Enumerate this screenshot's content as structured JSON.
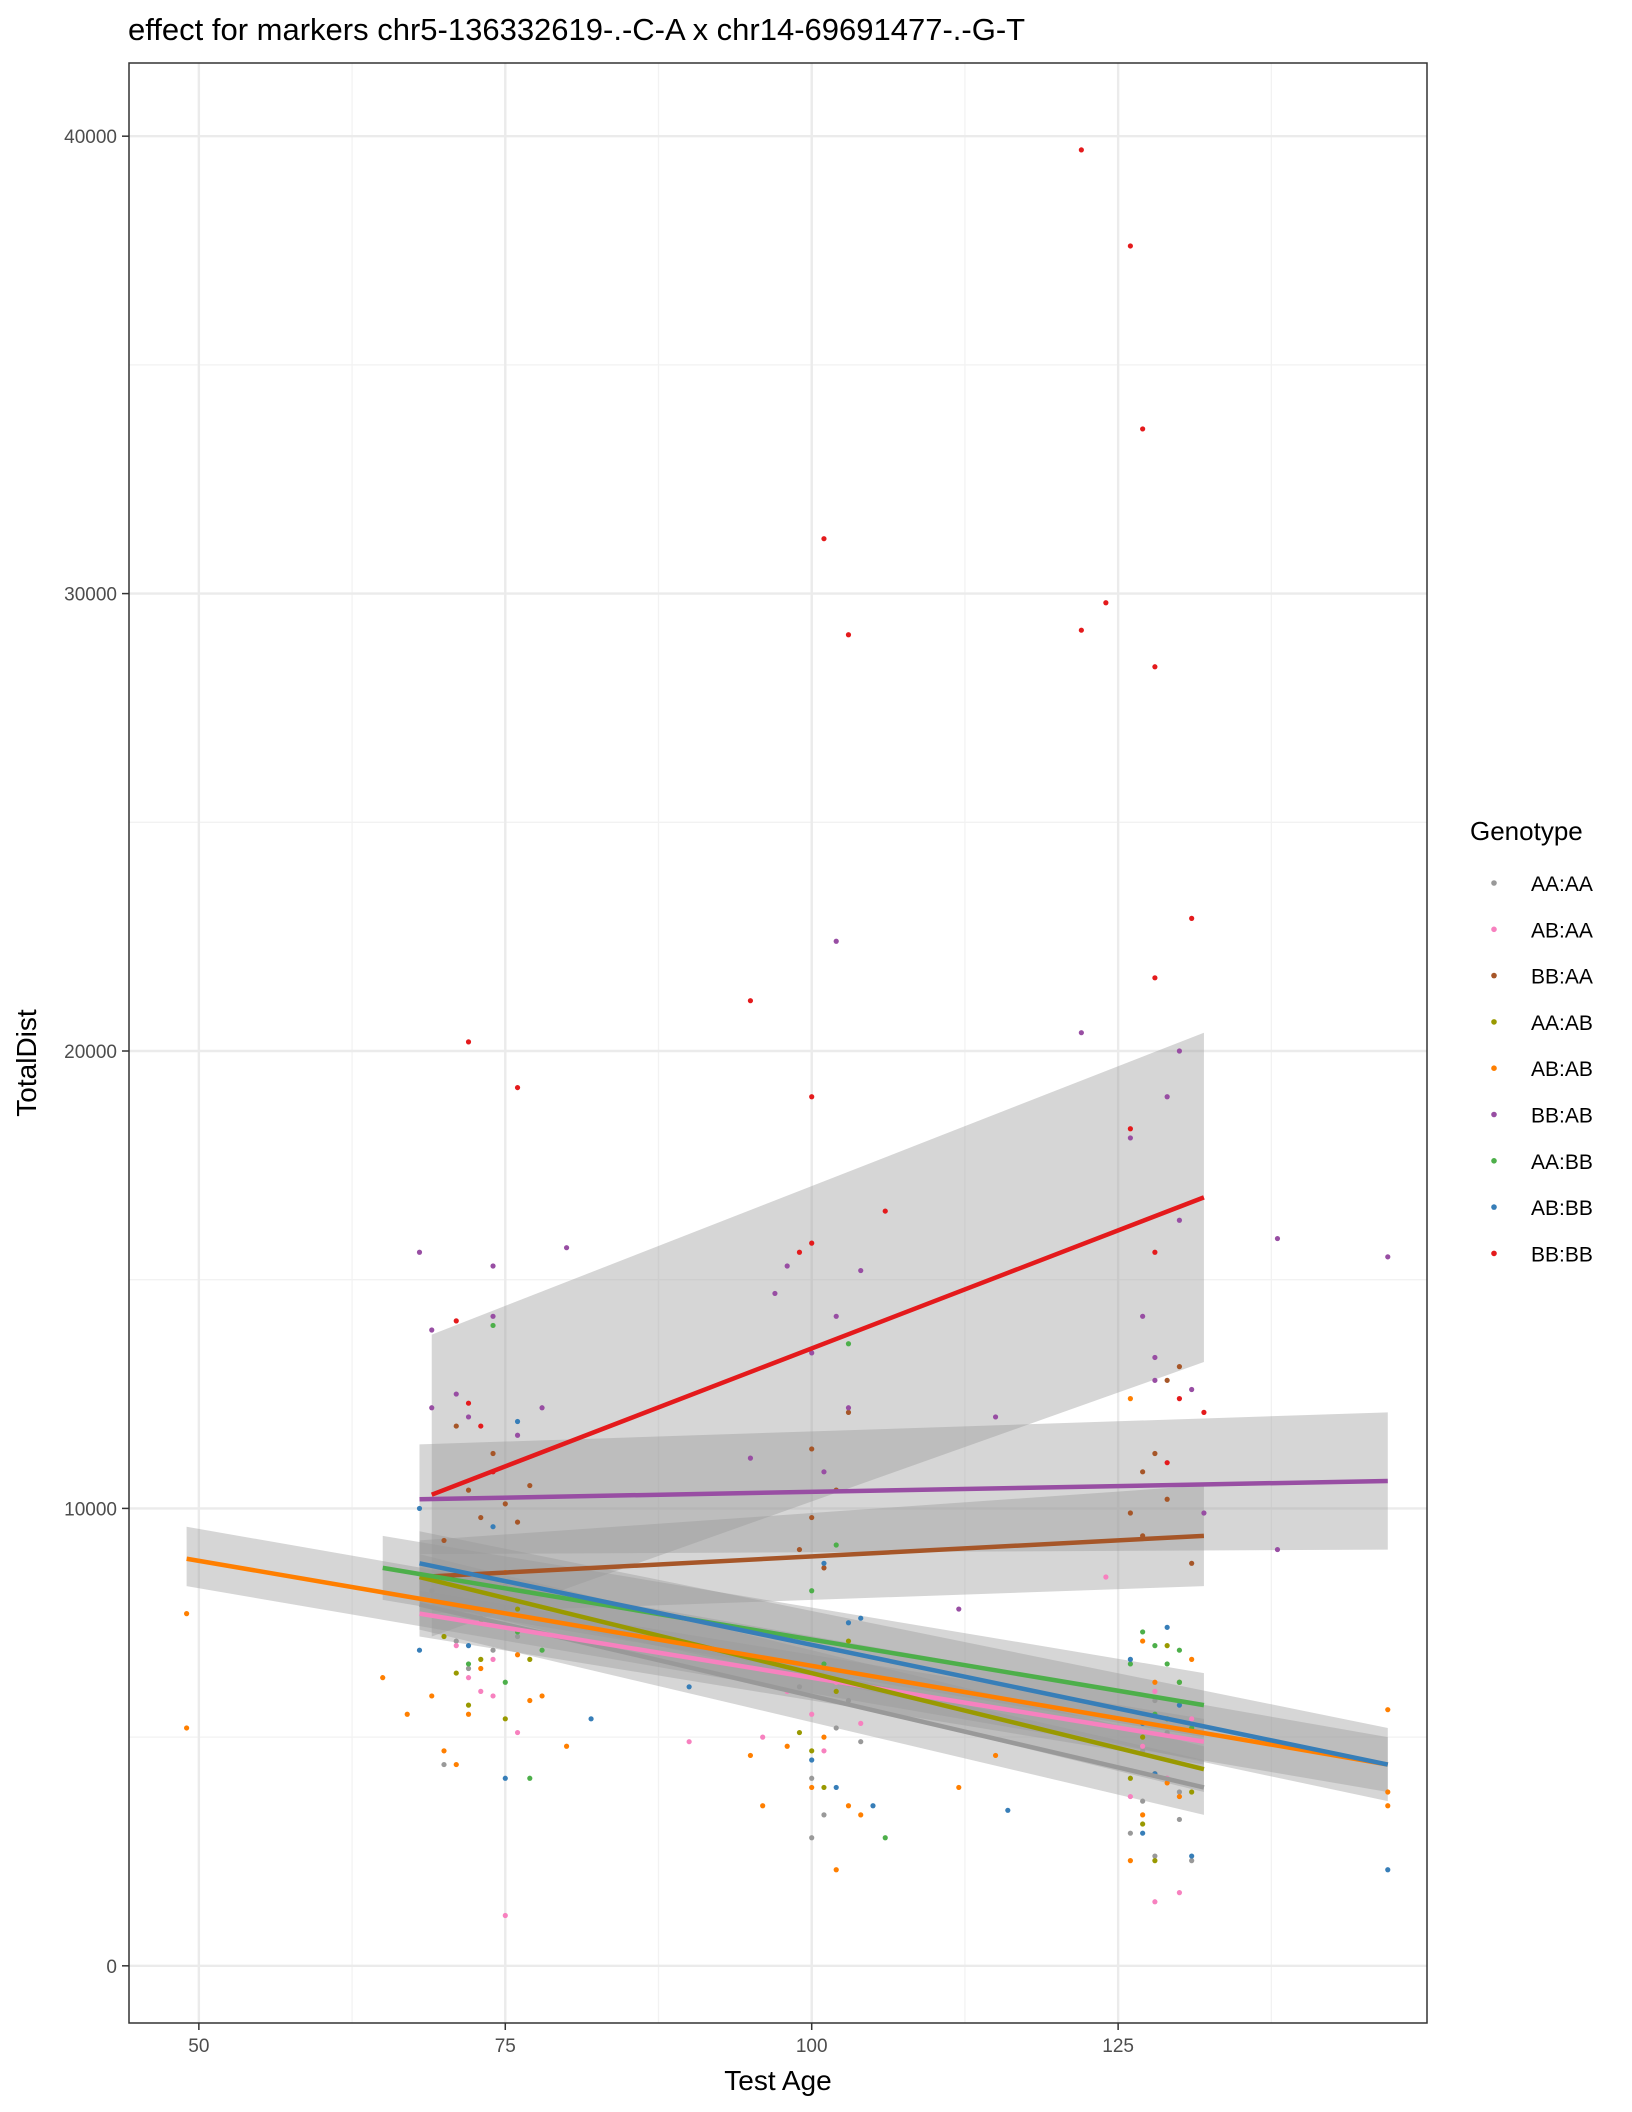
{
  "chart_data": {
    "type": "scatter",
    "title": "effect for markers chr5-136332619-.-C-A x chr14-69691477-.-G-T",
    "xlabel": "Test Age",
    "ylabel": "TotalDist",
    "xlim": [
      44.3,
      150.2
    ],
    "ylim": [
      -1250,
      41600
    ],
    "x_ticks": [
      {
        "value": 50,
        "label": "50"
      },
      {
        "value": 75,
        "label": "75"
      },
      {
        "value": 100,
        "label": "100"
      },
      {
        "value": 125,
        "label": "125"
      }
    ],
    "y_ticks": [
      {
        "value": 0,
        "label": "0"
      },
      {
        "value": 10000,
        "label": "10000"
      },
      {
        "value": 20000,
        "label": "20000"
      },
      {
        "value": 30000,
        "label": "30000"
      },
      {
        "value": 40000,
        "label": "40000"
      }
    ],
    "grid": true,
    "legend_title": "Genotype",
    "legend_position": "right",
    "series": [
      {
        "name": "AA:AA",
        "color": "#999999",
        "points": [
          [
            69,
            8200
          ],
          [
            70,
            4400
          ],
          [
            71,
            7100
          ],
          [
            72,
            6500
          ],
          [
            73,
            7600
          ],
          [
            74,
            6900
          ],
          [
            75,
            8300
          ],
          [
            76,
            7200
          ],
          [
            100,
            2800
          ],
          [
            101,
            3300
          ],
          [
            102,
            5200
          ],
          [
            99,
            6100
          ],
          [
            103,
            5800
          ],
          [
            100,
            4100
          ],
          [
            101,
            6500
          ],
          [
            104,
            4900
          ],
          [
            126,
            2900
          ],
          [
            127,
            3600
          ],
          [
            128,
            2400
          ],
          [
            129,
            4100
          ],
          [
            130,
            3200
          ],
          [
            131,
            2300
          ],
          [
            128,
            5800
          ],
          [
            127,
            4700
          ],
          [
            130,
            3800
          ],
          [
            129,
            5100
          ]
        ],
        "fit": {
          "x": [
            68,
            132
          ],
          "y": [
            7900,
            3900
          ]
        },
        "band": {
          "lower": [
            7350,
            3300
          ],
          "upper": [
            8450,
            4500
          ]
        }
      },
      {
        "name": "AB:AA",
        "color": "#F781BF",
        "points": [
          [
            72,
            6300
          ],
          [
            73,
            6000
          ],
          [
            74,
            5900
          ],
          [
            75,
            1100
          ],
          [
            76,
            5100
          ],
          [
            71,
            7000
          ],
          [
            74,
            6700
          ],
          [
            90,
            4900
          ],
          [
            96,
            5000
          ],
          [
            98,
            6000
          ],
          [
            100,
            5500
          ],
          [
            101,
            4700
          ],
          [
            102,
            6200
          ],
          [
            104,
            5300
          ],
          [
            126,
            3700
          ],
          [
            127,
            4800
          ],
          [
            128,
            1400
          ],
          [
            129,
            4100
          ],
          [
            130,
            1600
          ],
          [
            131,
            5400
          ],
          [
            124,
            8500
          ],
          [
            128,
            6000
          ]
        ],
        "fit": {
          "x": [
            68,
            132
          ],
          "y": [
            7700,
            4900
          ]
        },
        "band": {
          "lower": [
            7200,
            4400
          ],
          "upper": [
            8200,
            5400
          ]
        }
      },
      {
        "name": "BB:AA",
        "color": "#A65628",
        "points": [
          [
            70,
            9300
          ],
          [
            71,
            11800
          ],
          [
            72,
            10400
          ],
          [
            73,
            9800
          ],
          [
            74,
            11200
          ],
          [
            75,
            10100
          ],
          [
            76,
            9700
          ],
          [
            77,
            10500
          ],
          [
            100,
            9800
          ],
          [
            101,
            8700
          ],
          [
            102,
            10400
          ],
          [
            99,
            9100
          ],
          [
            103,
            12100
          ],
          [
            100,
            11300
          ],
          [
            126,
            9900
          ],
          [
            127,
            10800
          ],
          [
            128,
            11200
          ],
          [
            129,
            12800
          ],
          [
            130,
            13100
          ],
          [
            131,
            8800
          ],
          [
            127,
            9400
          ],
          [
            129,
            10200
          ]
        ],
        "fit": {
          "x": [
            68,
            132
          ],
          "y": [
            8500,
            9400
          ]
        },
        "band": {
          "lower": [
            7700,
            8300
          ],
          "upper": [
            9300,
            10500
          ]
        }
      },
      {
        "name": "AA:AB",
        "color": "#999900",
        "points": [
          [
            70,
            7200
          ],
          [
            71,
            6400
          ],
          [
            72,
            5700
          ],
          [
            73,
            6700
          ],
          [
            75,
            5400
          ],
          [
            76,
            7800
          ],
          [
            77,
            6700
          ],
          [
            100,
            4700
          ],
          [
            101,
            3900
          ],
          [
            102,
            6000
          ],
          [
            103,
            7100
          ],
          [
            99,
            5100
          ],
          [
            126,
            4100
          ],
          [
            127,
            3100
          ],
          [
            128,
            2300
          ],
          [
            129,
            5400
          ],
          [
            130,
            6200
          ],
          [
            131,
            3800
          ],
          [
            129,
            7000
          ],
          [
            127,
            5000
          ]
        ],
        "fit": {
          "x": [
            68,
            132
          ],
          "y": [
            8500,
            4300
          ]
        },
        "band": {
          "lower": [
            8000,
            3800
          ],
          "upper": [
            9000,
            4800
          ]
        }
      },
      {
        "name": "AB:AB",
        "color": "#FF7F00",
        "points": [
          [
            49,
            7700
          ],
          [
            49,
            5200
          ],
          [
            65,
            6300
          ],
          [
            67,
            5500
          ],
          [
            69,
            5900
          ],
          [
            70,
            4700
          ],
          [
            71,
            4400
          ],
          [
            72,
            5500
          ],
          [
            73,
            6500
          ],
          [
            75,
            8600
          ],
          [
            76,
            6800
          ],
          [
            77,
            5800
          ],
          [
            78,
            5900
          ],
          [
            80,
            4800
          ],
          [
            95,
            4600
          ],
          [
            96,
            3500
          ],
          [
            98,
            4800
          ],
          [
            100,
            3900
          ],
          [
            101,
            5000
          ],
          [
            102,
            2100
          ],
          [
            103,
            3500
          ],
          [
            104,
            3300
          ],
          [
            112,
            3900
          ],
          [
            115,
            4600
          ],
          [
            126,
            2300
          ],
          [
            127,
            3300
          ],
          [
            128,
            4200
          ],
          [
            129,
            4000
          ],
          [
            130,
            3700
          ],
          [
            131,
            6700
          ],
          [
            126,
            12400
          ],
          [
            127,
            7100
          ],
          [
            128,
            6200
          ],
          [
            147,
            3800
          ],
          [
            147,
            5600
          ],
          [
            147,
            3500
          ]
        ],
        "fit": {
          "x": [
            49,
            147
          ],
          "y": [
            8900,
            4400
          ]
        },
        "band": {
          "lower": [
            8300,
            3800
          ],
          "upper": [
            9600,
            5000
          ]
        }
      },
      {
        "name": "BB:AB",
        "color": "#984EA3",
        "points": [
          [
            68,
            15600
          ],
          [
            69,
            13900
          ],
          [
            69,
            12200
          ],
          [
            71,
            12500
          ],
          [
            72,
            12000
          ],
          [
            74,
            15300
          ],
          [
            74,
            14200
          ],
          [
            76,
            11600
          ],
          [
            78,
            12200
          ],
          [
            80,
            15700
          ],
          [
            95,
            11100
          ],
          [
            97,
            14700
          ],
          [
            98,
            15300
          ],
          [
            100,
            13400
          ],
          [
            101,
            10800
          ],
          [
            102,
            22400
          ],
          [
            102,
            14200
          ],
          [
            103,
            12200
          ],
          [
            104,
            15200
          ],
          [
            112,
            7800
          ],
          [
            115,
            12000
          ],
          [
            122,
            20400
          ],
          [
            126,
            18100
          ],
          [
            127,
            14200
          ],
          [
            128,
            13300
          ],
          [
            128,
            12800
          ],
          [
            129,
            19000
          ],
          [
            130,
            16300
          ],
          [
            130,
            20000
          ],
          [
            131,
            12600
          ],
          [
            132,
            9900
          ],
          [
            138,
            15900
          ],
          [
            138,
            9100
          ],
          [
            147,
            15500
          ]
        ],
        "fit": {
          "x": [
            68,
            147
          ],
          "y": [
            10200,
            10600
          ]
        },
        "band": {
          "lower": [
            9000,
            9100
          ],
          "upper": [
            11400,
            12100
          ]
        }
      },
      {
        "name": "AA:BB",
        "color": "#4DAF4A",
        "points": [
          [
            72,
            6600
          ],
          [
            73,
            7500
          ],
          [
            74,
            14000
          ],
          [
            75,
            6200
          ],
          [
            76,
            7300
          ],
          [
            77,
            4100
          ],
          [
            78,
            6900
          ],
          [
            100,
            8200
          ],
          [
            101,
            6600
          ],
          [
            102,
            9200
          ],
          [
            103,
            13600
          ],
          [
            106,
            2800
          ],
          [
            126,
            6600
          ],
          [
            127,
            7300
          ],
          [
            128,
            5500
          ],
          [
            129,
            6600
          ],
          [
            130,
            6900
          ],
          [
            131,
            5200
          ],
          [
            128,
            7000
          ],
          [
            130,
            6200
          ]
        ],
        "fit": {
          "x": [
            65,
            132
          ],
          "y": [
            8700,
            5700
          ]
        },
        "band": {
          "lower": [
            8000,
            5000
          ],
          "upper": [
            9400,
            6400
          ]
        }
      },
      {
        "name": "AB:BB",
        "color": "#377EB8",
        "points": [
          [
            68,
            10000
          ],
          [
            68,
            6900
          ],
          [
            72,
            7000
          ],
          [
            74,
            9600
          ],
          [
            75,
            4100
          ],
          [
            76,
            11900
          ],
          [
            82,
            5400
          ],
          [
            90,
            6100
          ],
          [
            100,
            4500
          ],
          [
            101,
            8800
          ],
          [
            102,
            3900
          ],
          [
            103,
            7500
          ],
          [
            104,
            7600
          ],
          [
            105,
            3500
          ],
          [
            116,
            3400
          ],
          [
            126,
            6700
          ],
          [
            127,
            5300
          ],
          [
            128,
            4200
          ],
          [
            129,
            7400
          ],
          [
            130,
            5700
          ],
          [
            131,
            2400
          ],
          [
            127,
            2900
          ],
          [
            147,
            2100
          ]
        ],
        "fit": {
          "x": [
            68,
            147
          ],
          "y": [
            8800,
            4400
          ]
        },
        "band": {
          "lower": [
            8100,
            3600
          ],
          "upper": [
            9500,
            5200
          ]
        }
      },
      {
        "name": "BB:BB",
        "color": "#E41A1C",
        "points": [
          [
            72,
            20200
          ],
          [
            76,
            19200
          ],
          [
            71,
            14100
          ],
          [
            72,
            12300
          ],
          [
            73,
            11800
          ],
          [
            74,
            10800
          ],
          [
            95,
            21100
          ],
          [
            99,
            15600
          ],
          [
            100,
            19000
          ],
          [
            100,
            15800
          ],
          [
            101,
            31200
          ],
          [
            103,
            29100
          ],
          [
            106,
            16500
          ],
          [
            122,
            39700
          ],
          [
            124,
            29800
          ],
          [
            122,
            29200
          ],
          [
            126,
            37600
          ],
          [
            126,
            18300
          ],
          [
            127,
            33600
          ],
          [
            128,
            28400
          ],
          [
            128,
            21600
          ],
          [
            128,
            15600
          ],
          [
            130,
            12400
          ],
          [
            131,
            22900
          ],
          [
            132,
            12100
          ],
          [
            129,
            11000
          ]
        ],
        "fit": {
          "x": [
            69,
            132
          ],
          "y": [
            10300,
            16800
          ]
        },
        "band": {
          "lower": [
            7200,
            13200
          ],
          "upper": [
            13800,
            20400
          ]
        }
      }
    ]
  }
}
